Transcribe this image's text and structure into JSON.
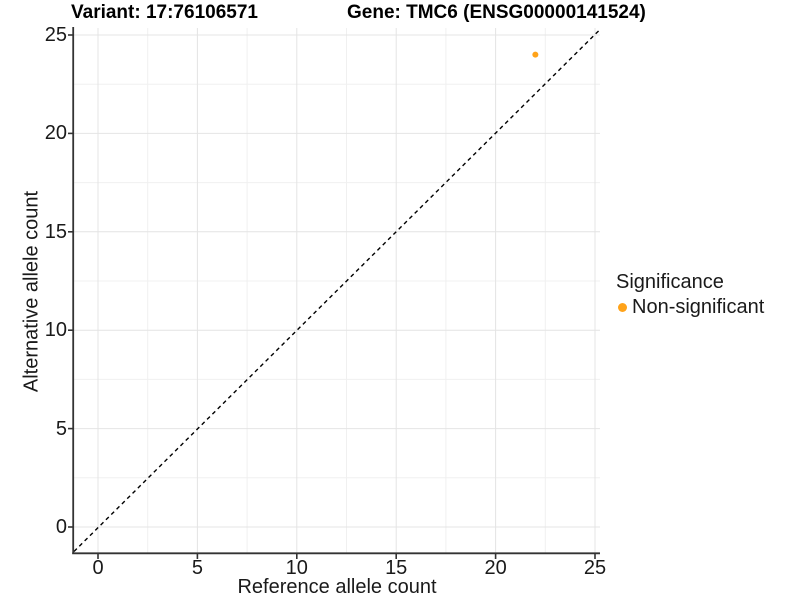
{
  "header": {
    "variant_title": "Variant: 17:76106571",
    "gene_title": "Gene: TMC6 (ENSG00000141524)"
  },
  "chart_data": {
    "type": "scatter",
    "title_left": "Variant: 17:76106571",
    "title_right": "Gene: TMC6 (ENSG00000141524)",
    "xlabel": "Reference allele count",
    "ylabel": "Alternative allele count",
    "xlim": [
      0,
      25
    ],
    "ylim": [
      0,
      25
    ],
    "xticks": [
      0,
      5,
      10,
      15,
      20,
      25
    ],
    "yticks": [
      0,
      5,
      10,
      15,
      20,
      25
    ],
    "minor_ticks": [
      2.5,
      7.5,
      12.5,
      17.5,
      22.5
    ],
    "grid": "major and minor gridlines on, white panel background",
    "legend_position": "right",
    "reference_line": {
      "kind": "identity y=x",
      "style": "dashed",
      "color": "#000000"
    },
    "series": [
      {
        "name": "Non-significant",
        "color": "#FFA31A",
        "points": [
          {
            "x": 22,
            "y": 24
          }
        ]
      }
    ],
    "colors": {
      "point": "#FFA31A",
      "grid_major": "#e4e4e4",
      "grid_minor": "#f0f0f0",
      "axis_line": "#333333",
      "text": "#1a1a1a"
    }
  },
  "legend": {
    "title": "Significance",
    "items": [
      {
        "label": "Non-significant",
        "color": "#FFA31A",
        "marker": "circle"
      }
    ]
  }
}
